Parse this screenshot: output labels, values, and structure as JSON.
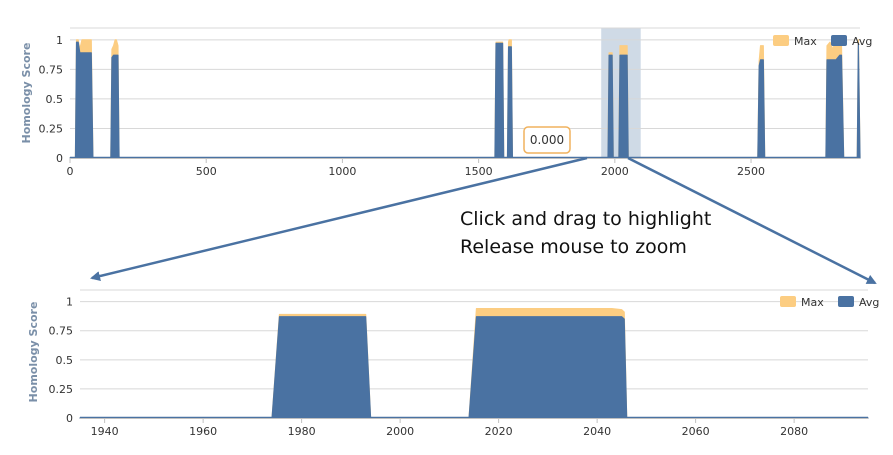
{
  "colors": {
    "max": "#fccd82",
    "avg": "#4a72a2",
    "grid": "#d8d8d8",
    "axis": "#c0c0c0",
    "arrow": "#4a72a2",
    "selection": "#c7d3e2",
    "tooltip_border": "#f0b25e"
  },
  "tooltip": {
    "value": "0.000"
  },
  "instructions": {
    "line1": "Click and drag to highlight",
    "line2": "Release mouse to zoom"
  },
  "chart_data": [
    {
      "type": "area",
      "ylabel": "Homology Score",
      "xlim": [
        0,
        2900
      ],
      "ylim": [
        0,
        1.1
      ],
      "x_ticks": [
        0,
        500,
        1000,
        1500,
        2000,
        2500
      ],
      "y_ticks": [
        0,
        0.25,
        0.5,
        0.75,
        1
      ],
      "y_tick_labels": [
        "0",
        "0.25",
        "0.5",
        "0.75",
        "1"
      ],
      "legend": {
        "items": [
          "Max",
          "Avg"
        ],
        "placement": "top-right"
      },
      "selection": [
        1950,
        2095
      ],
      "series": [
        {
          "name": "Max",
          "x": [
            0,
            20,
            24,
            30,
            36,
            44,
            78,
            84,
            150,
            154,
            160,
            166,
            170,
            176,
            180,
            1560,
            1564,
            1588,
            1592,
            1596,
            1606,
            1610,
            1612,
            1620,
            1624,
            1630,
            1635,
            1640,
            1642,
            1650,
            1975,
            1979,
            1990,
            1994,
            2015,
            2019,
            2045,
            2049,
            2525,
            2530,
            2535,
            2545,
            2550,
            2555,
            2775,
            2779,
            2790,
            2800,
            2812,
            2826,
            2832,
            2840,
            2848,
            2852,
            2860,
            2890,
            2894,
            2900
          ],
          "values": [
            0,
            0,
            1,
            1,
            0.92,
            1,
            1,
            0,
            0,
            0.92,
            0.95,
            1,
            1,
            0.95,
            0,
            0,
            0.98,
            0.98,
            0,
            0,
            0,
            0.98,
            1,
            1,
            0,
            0,
            0,
            0,
            0,
            0,
            0,
            0.89,
            0.89,
            0,
            0,
            0.95,
            0.95,
            0,
            0,
            0.82,
            0.95,
            0.95,
            0,
            0,
            0,
            0.95,
            0.98,
            0.92,
            1,
            1,
            0.95,
            0,
            0,
            0,
            0,
            0,
            1,
            0
          ]
        },
        {
          "name": "Avg",
          "x": [
            0,
            20,
            24,
            30,
            36,
            44,
            78,
            84,
            150,
            154,
            160,
            166,
            170,
            176,
            180,
            1560,
            1564,
            1588,
            1592,
            1596,
            1606,
            1610,
            1612,
            1620,
            1624,
            1630,
            1635,
            1640,
            1642,
            1650,
            1975,
            1979,
            1990,
            1994,
            2015,
            2019,
            2045,
            2049,
            2525,
            2530,
            2535,
            2545,
            2550,
            2555,
            2775,
            2779,
            2790,
            2800,
            2812,
            2826,
            2832,
            2840,
            2848,
            2852,
            2860,
            2890,
            2894,
            2900
          ],
          "values": [
            0,
            0,
            0.98,
            0.98,
            0.89,
            0.89,
            0.89,
            0,
            0,
            0.85,
            0.87,
            0.87,
            0.87,
            0.87,
            0,
            0,
            0.97,
            0.97,
            0,
            0,
            0,
            0.94,
            0.94,
            0.94,
            0,
            0,
            0,
            0,
            0,
            0,
            0,
            0.87,
            0.87,
            0,
            0,
            0.87,
            0.87,
            0,
            0,
            0.78,
            0.83,
            0.83,
            0,
            0,
            0,
            0.83,
            0.83,
            0.83,
            0.83,
            0.87,
            0.87,
            0,
            0,
            0,
            0,
            0,
            0.97,
            0
          ]
        }
      ]
    },
    {
      "type": "area",
      "ylabel": "Homology Score",
      "xlim": [
        1935,
        2095
      ],
      "ylim": [
        0,
        1.1
      ],
      "x_ticks": [
        1940,
        1960,
        1980,
        2000,
        2020,
        2040,
        2060,
        2080
      ],
      "y_ticks": [
        0,
        0.25,
        0.5,
        0.75,
        1
      ],
      "y_tick_labels": [
        "0",
        "0.25",
        "0.5",
        "0.75",
        "1"
      ],
      "legend": {
        "items": [
          "Max",
          "Avg"
        ],
        "placement": "top-right"
      },
      "series": [
        {
          "name": "Max",
          "x": [
            1935,
            1974,
            1975.5,
            1993,
            1994,
            2014,
            2015.5,
            2043,
            2045,
            2045.5,
            2046,
            2095
          ],
          "values": [
            0,
            0,
            0.89,
            0.89,
            0,
            0,
            0.94,
            0.94,
            0.93,
            0.91,
            0,
            0
          ],
          "values_at_step": [
            0,
            0.89
          ]
        },
        {
          "name": "Avg",
          "x": [
            1935,
            1974,
            1975.5,
            1993,
            1994,
            2014,
            2015.5,
            2043,
            2045,
            2045.5,
            2046,
            2095
          ],
          "values": [
            0,
            0,
            0.87,
            0.87,
            0,
            0,
            0.87,
            0.87,
            0.87,
            0.85,
            0,
            0
          ],
          "values_at_step": [
            0,
            0.87
          ]
        }
      ]
    }
  ]
}
